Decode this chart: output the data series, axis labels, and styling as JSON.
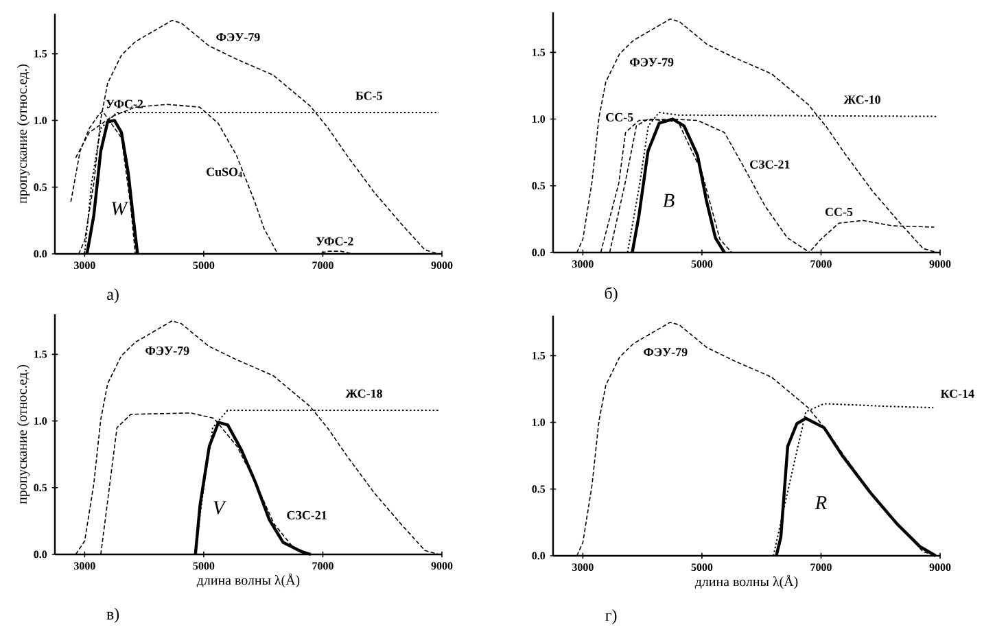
{
  "chart_data": [
    {
      "type": "line",
      "ylabel": "пропускание (относ.ед.)",
      "xlim": [
        2500,
        9000
      ],
      "ylim": [
        0,
        1.8
      ],
      "xticks": [
        3000,
        5000,
        7000,
        9000
      ],
      "yticks": [
        {
          "value": 0,
          "label": "0.0"
        },
        {
          "value": 0.5,
          "label": "0.5"
        },
        {
          "value": 1,
          "label": "1.0"
        },
        {
          "value": 1.5,
          "label": "1.5"
        }
      ],
      "annotations": [
        "а)",
        {
          "text": "УФС-2",
          "x": 7200,
          "y": 0.02
        }
      ],
      "series": [
        {
          "name": "ФЭУ-79",
          "color": "#000000",
          "line_style": "dashed",
          "x": [
            2900,
            3000,
            3154,
            3270,
            3386,
            3618,
            3850,
            4467,
            4622,
            5085,
            5548,
            6166,
            6784,
            7093,
            7402,
            7865,
            8328,
            8714,
            8946
          ],
          "values": [
            0,
            0.1,
            0.53,
            1.01,
            1.28,
            1.49,
            1.59,
            1.75,
            1.73,
            1.56,
            1.46,
            1.34,
            1.11,
            0.94,
            0.74,
            0.46,
            0.22,
            0.03,
            0
          ]
        },
        {
          "name": "УФС-2",
          "color": "#000000",
          "line_style": "dashed",
          "x": [
            2768,
            2923,
            3077,
            3232,
            3300,
            3618,
            3772,
            3850,
            6900,
            7100,
            7300,
            7500
          ],
          "values": [
            0.39,
            0.77,
            0.94,
            1.04,
            1.07,
            0.87,
            0.36,
            0,
            0,
            0.02,
            0.02,
            0
          ]
        },
        {
          "name": "БС-5",
          "color": "#000000",
          "line_style": "dotted",
          "x": [
            3000,
            3116,
            3270,
            3540,
            8950
          ],
          "values": [
            0,
            0.53,
            0.94,
            1.06,
            1.06
          ]
        },
        {
          "name": "CuSO$_{4}$",
          "color": "#000000",
          "line_style": "dashed",
          "x": [
            2850,
            3077,
            3463,
            3850,
            4390,
            4930,
            5240,
            5548,
            5857,
            6012,
            6243
          ],
          "values": [
            0.72,
            0.91,
            1.03,
            1.1,
            1.12,
            1.1,
            0.98,
            0.74,
            0.39,
            0.19,
            0
          ]
        },
        {
          "name": "W",
          "color": "#000000",
          "line_style": "solid",
          "x": [
            3039,
            3154,
            3270,
            3386,
            3502,
            3618,
            3734,
            3811,
            3888
          ],
          "values": [
            0,
            0.29,
            0.77,
            0.99,
            1.0,
            0.91,
            0.6,
            0.29,
            0
          ]
        }
      ]
    },
    {
      "type": "line",
      "xlim": [
        2500,
        9000
      ],
      "ylim": [
        0,
        1.8
      ],
      "xticks": [
        3000,
        5000,
        7000,
        9000
      ],
      "yticks": [
        {
          "value": 0,
          "label": "0.0"
        },
        {
          "value": 0.5,
          "label": "0.5"
        },
        {
          "value": 1,
          "label": "1.0"
        },
        {
          "value": 1.5,
          "label": "1.5"
        }
      ],
      "annotations": [
        "б)",
        {
          "text": "СС-5",
          "x": 7300,
          "y": 0.23
        }
      ],
      "series": [
        {
          "name": "ФЭУ-79",
          "color": "#000000",
          "line_style": "dashed",
          "x": [
            2900,
            3000,
            3154,
            3270,
            3386,
            3618,
            3850,
            4467,
            4622,
            5085,
            5548,
            6166,
            6784,
            7093,
            7402,
            7865,
            8328,
            8714,
            8946
          ],
          "values": [
            0,
            0.1,
            0.53,
            1.01,
            1.28,
            1.49,
            1.59,
            1.75,
            1.73,
            1.56,
            1.46,
            1.34,
            1.11,
            0.94,
            0.74,
            0.46,
            0.22,
            0.03,
            0
          ]
        },
        {
          "name": "СС-5",
          "color": "#000000",
          "line_style": "dashed",
          "x": [
            3450,
            3700,
            3900,
            4100,
            4600,
            5000,
            5300,
            5500,
            6800,
            7000,
            7300,
            7700,
            8200,
            8900
          ],
          "values": [
            0,
            0.5,
            0.95,
            1.0,
            0.98,
            0.6,
            0.1,
            0,
            0,
            0.1,
            0.22,
            0.24,
            0.2,
            0.19
          ]
        },
        {
          "name": "ЖС-10",
          "color": "#000000",
          "line_style": "dotted",
          "x": [
            3750,
            3950,
            4100,
            4283,
            4600,
            8950
          ],
          "values": [
            0,
            0.5,
            0.95,
            1.05,
            1.03,
            1.02
          ]
        },
        {
          "name": "СЗС-21",
          "color": "#000000",
          "line_style": "dashed",
          "x": [
            3300,
            3604,
            3717,
            3943,
            4472,
            4925,
            5377,
            5679,
            6057,
            6434,
            6811
          ],
          "values": [
            0,
            0.52,
            0.9,
            0.99,
            1.0,
            0.99,
            0.9,
            0.66,
            0.35,
            0.11,
            0
          ]
        },
        {
          "name": "B",
          "color": "#000000",
          "line_style": "solid",
          "x": [
            3830,
            3943,
            4094,
            4283,
            4509,
            4698,
            4925,
            5075,
            5226,
            5377
          ],
          "values": [
            0,
            0.28,
            0.76,
            0.97,
            1.0,
            0.95,
            0.73,
            0.39,
            0.11,
            0
          ]
        }
      ]
    },
    {
      "type": "line",
      "xlabel": "длина волны λ(Å)",
      "ylabel": "пропускание (относ.ед.)",
      "xlim": [
        2500,
        9000
      ],
      "ylim": [
        0,
        1.8
      ],
      "xticks": [
        3000,
        5000,
        7000,
        9000
      ],
      "yticks": [
        {
          "value": 0,
          "label": "0.0"
        },
        {
          "value": 0.5,
          "label": "0.5"
        },
        {
          "value": 1,
          "label": "1.0"
        },
        {
          "value": 1.5,
          "label": "1.5"
        }
      ],
      "annotations": [
        "в)"
      ],
      "series": [
        {
          "name": "ФЭУ-79",
          "color": "#000000",
          "line_style": "dashed",
          "x": [
            2850,
            3000,
            3154,
            3270,
            3386,
            3618,
            3850,
            4467,
            4622,
            5085,
            5548,
            6166,
            6784,
            7093,
            7402,
            7865,
            8328,
            8714,
            8946
          ],
          "values": [
            0,
            0.1,
            0.53,
            1.01,
            1.28,
            1.49,
            1.59,
            1.75,
            1.73,
            1.56,
            1.46,
            1.34,
            1.11,
            0.94,
            0.74,
            0.46,
            0.22,
            0.03,
            0
          ]
        },
        {
          "name": "СЗС-21",
          "color": "#000000",
          "line_style": "dashed",
          "x": [
            3271,
            3543,
            3775,
            4783,
            5171,
            5558,
            5868,
            6178,
            6488,
            6798
          ],
          "values": [
            0,
            0.95,
            1.05,
            1.06,
            1.02,
            0.81,
            0.54,
            0.23,
            0.06,
            0
          ]
        },
        {
          "name": "ЖС-18",
          "color": "#000000",
          "line_style": "dotted",
          "x": [
            4850,
            5000,
            5150,
            5400,
            8950
          ],
          "values": [
            0,
            0.5,
            0.95,
            1.08,
            1.08
          ]
        },
        {
          "name": "V",
          "color": "#000000",
          "line_style": "solid",
          "x": [
            4860,
            4938,
            5093,
            5248,
            5403,
            5636,
            5868,
            6101,
            6333,
            6643,
            6798
          ],
          "values": [
            0,
            0.37,
            0.81,
            0.99,
            0.97,
            0.78,
            0.54,
            0.26,
            0.09,
            0.02,
            0
          ]
        }
      ]
    },
    {
      "type": "line",
      "xlabel": "длина волны λ(Å)",
      "xlim": [
        2500,
        9000
      ],
      "ylim": [
        0,
        1.8
      ],
      "xticks": [
        3000,
        5000,
        7000,
        9000
      ],
      "yticks": [
        {
          "value": 0,
          "label": "0.0"
        },
        {
          "value": 0.5,
          "label": "0.5"
        },
        {
          "value": 1,
          "label": "1.0"
        },
        {
          "value": 1.5,
          "label": "1.5"
        }
      ],
      "annotations": [
        "г)"
      ],
      "series": [
        {
          "name": "ФЭУ-79",
          "color": "#000000",
          "line_style": "dashed",
          "x": [
            2900,
            3000,
            3154,
            3270,
            3386,
            3618,
            3850,
            4467,
            4622,
            5085,
            5548,
            6166,
            6784,
            7093,
            7402,
            7865,
            8328,
            8714,
            8946
          ],
          "values": [
            0,
            0.1,
            0.53,
            1.01,
            1.28,
            1.49,
            1.59,
            1.75,
            1.73,
            1.56,
            1.46,
            1.34,
            1.11,
            0.94,
            0.74,
            0.46,
            0.22,
            0.03,
            0
          ]
        },
        {
          "name": "КС-14",
          "color": "#000000",
          "line_style": "dotted",
          "x": [
            6200,
            6500,
            6746,
            7052,
            8122,
            8887
          ],
          "values": [
            0,
            0.6,
            1.08,
            1.14,
            1.12,
            1.11
          ]
        },
        {
          "name": "R",
          "color": "#000000",
          "line_style": "solid",
          "x": [
            6249,
            6325,
            6440,
            6593,
            6746,
            7052,
            7358,
            7817,
            8275,
            8658,
            8925
          ],
          "values": [
            0,
            0.14,
            0.82,
            0.99,
            1.03,
            0.96,
            0.75,
            0.48,
            0.24,
            0.07,
            0
          ]
        }
      ]
    }
  ]
}
